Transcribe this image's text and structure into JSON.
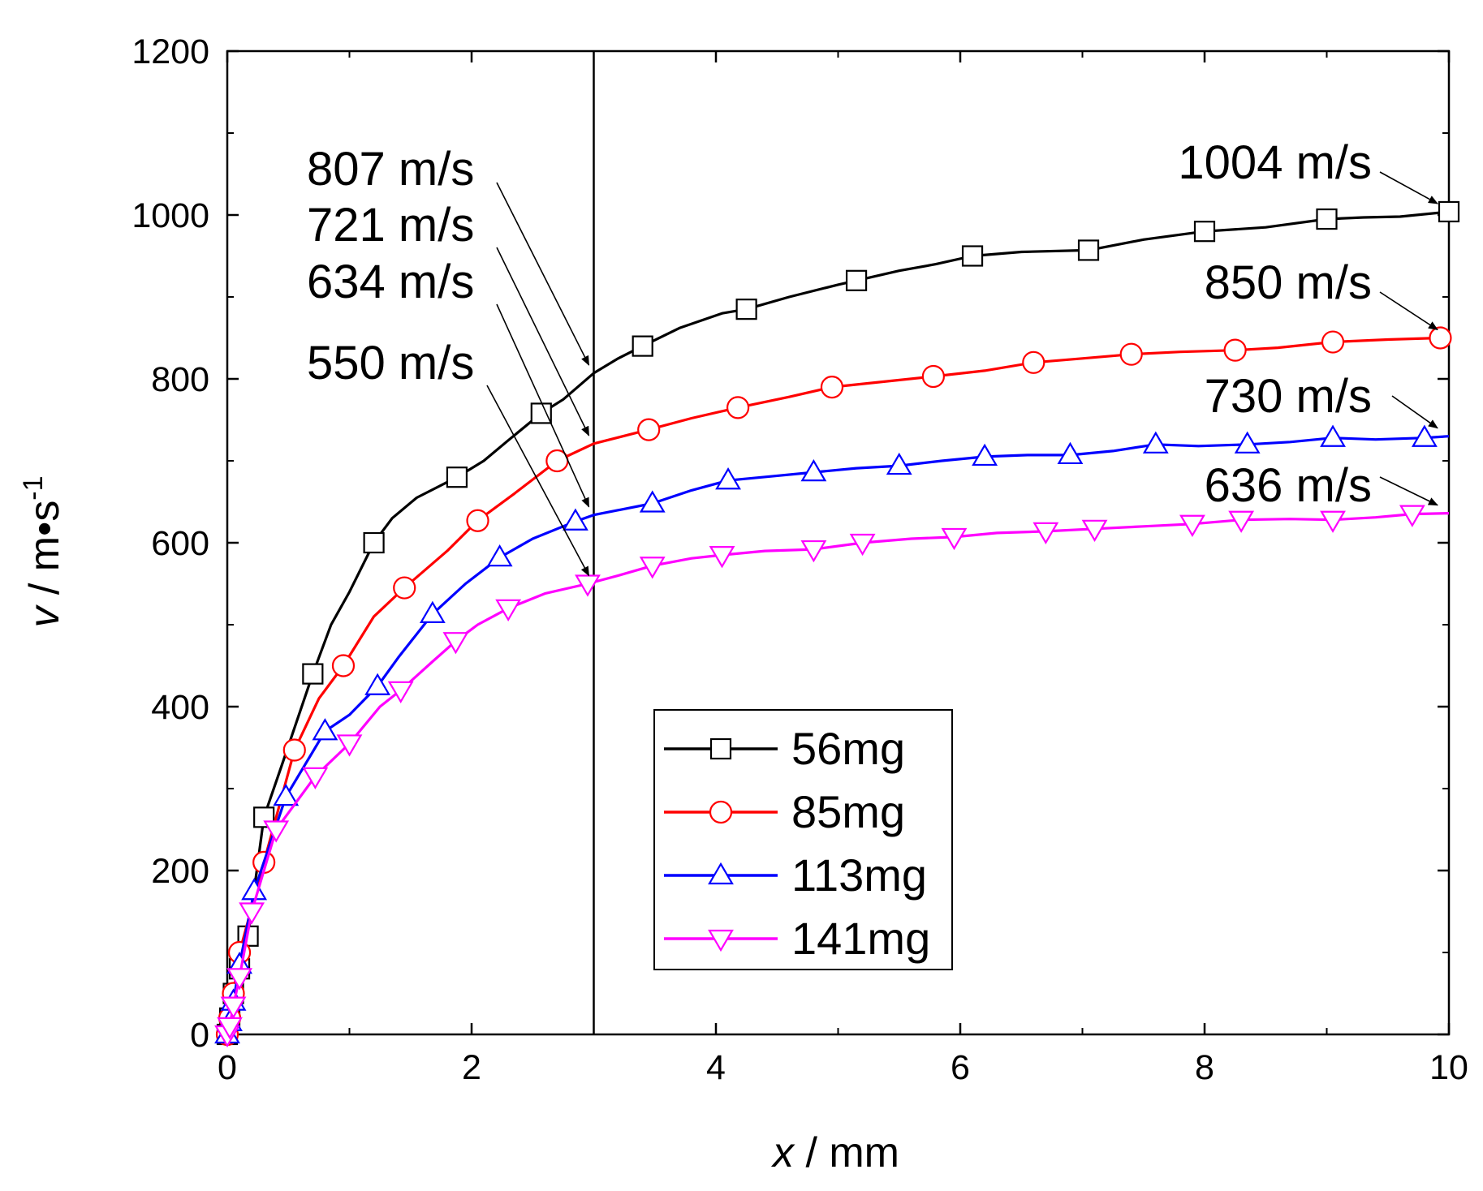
{
  "chart_data": {
    "type": "line",
    "xlabel_var": "x",
    "xlabel_unit": " / mm",
    "ylabel_var": "v",
    "ylabel_unit": " / m•s",
    "ylabel_sup": "-1",
    "xlim": [
      0,
      10
    ],
    "ylim": [
      0,
      1200
    ],
    "xticks": [
      0,
      2,
      4,
      6,
      8,
      10
    ],
    "yticks": [
      0,
      200,
      400,
      600,
      800,
      1000,
      1200
    ],
    "vline_x": 3,
    "legend_position": "center-bottom",
    "series": [
      {
        "name": "56mg",
        "color": "#000000",
        "marker": "square",
        "x": [
          0,
          0.02,
          0.05,
          0.1,
          0.17,
          0.3,
          0.45,
          0.7,
          0.85,
          1.0,
          1.2,
          1.35,
          1.55,
          1.88,
          2.1,
          2.3,
          2.57,
          2.75,
          3.0,
          3.2,
          3.4,
          3.7,
          4.05,
          4.25,
          4.6,
          5.0,
          5.15,
          5.5,
          5.8,
          6.1,
          6.5,
          7.05,
          7.5,
          8.0,
          8.5,
          9.0,
          9.3,
          9.6,
          10.0
        ],
        "y": [
          0,
          20,
          50,
          80,
          120,
          265,
          330,
          440,
          500,
          540,
          600,
          630,
          655,
          680,
          700,
          725,
          758,
          775,
          807,
          825,
          840,
          862,
          880,
          885,
          900,
          915,
          920,
          932,
          940,
          950,
          955,
          957,
          970,
          980,
          985,
          995,
          997,
          998,
          1004
        ],
        "marker_x": [
          0,
          0.02,
          0.05,
          0.1,
          0.17,
          0.3,
          0.7,
          1.2,
          1.88,
          2.57,
          3.4,
          4.25,
          5.15,
          6.1,
          7.05,
          8.0,
          9.0,
          10.0
        ],
        "marker_y": [
          0,
          20,
          50,
          80,
          120,
          265,
          440,
          600,
          680,
          758,
          840,
          885,
          920,
          950,
          957,
          980,
          995,
          1004
        ]
      },
      {
        "name": "85mg",
        "color": "#ff0000",
        "marker": "circle",
        "x": [
          0,
          0.02,
          0.05,
          0.1,
          0.3,
          0.55,
          0.75,
          0.95,
          1.2,
          1.45,
          1.8,
          2.05,
          2.35,
          2.7,
          3.0,
          3.45,
          3.8,
          4.18,
          4.6,
          4.95,
          5.4,
          5.78,
          6.2,
          6.6,
          7.0,
          7.4,
          7.8,
          8.25,
          8.6,
          9.05,
          9.5,
          9.93
        ],
        "y": [
          0,
          20,
          50,
          100,
          210,
          347,
          410,
          450,
          510,
          545,
          590,
          627,
          660,
          700,
          721,
          738,
          752,
          765,
          778,
          790,
          797,
          803,
          810,
          820,
          825,
          830,
          833,
          835,
          838,
          845,
          848,
          850
        ],
        "marker_x": [
          0,
          0.02,
          0.05,
          0.1,
          0.3,
          0.55,
          0.95,
          1.45,
          2.05,
          2.7,
          3.45,
          4.18,
          4.95,
          5.78,
          6.6,
          7.4,
          8.25,
          9.05,
          9.93
        ],
        "marker_y": [
          0,
          20,
          50,
          100,
          210,
          347,
          450,
          545,
          627,
          700,
          738,
          765,
          790,
          803,
          820,
          830,
          835,
          845,
          850
        ]
      },
      {
        "name": "113mg",
        "color": "#0000ff",
        "marker": "triangle-up",
        "x": [
          0,
          0.02,
          0.05,
          0.1,
          0.22,
          0.48,
          0.8,
          1.0,
          1.23,
          1.4,
          1.68,
          1.95,
          2.23,
          2.5,
          2.85,
          3.0,
          3.48,
          3.8,
          4.1,
          4.45,
          4.8,
          5.15,
          5.5,
          5.85,
          6.2,
          6.55,
          6.9,
          7.25,
          7.6,
          7.95,
          8.35,
          8.7,
          9.05,
          9.4,
          9.8,
          10.0
        ],
        "y": [
          0,
          15,
          40,
          85,
          175,
          290,
          370,
          390,
          425,
          460,
          513,
          550,
          582,
          605,
          626,
          634,
          648,
          664,
          676,
          681,
          686,
          691,
          694,
          700,
          705,
          707,
          707,
          712,
          720,
          718,
          720,
          723,
          728,
          726,
          728,
          730
        ],
        "marker_x": [
          0,
          0.02,
          0.05,
          0.1,
          0.22,
          0.48,
          0.8,
          1.23,
          1.68,
          2.23,
          2.85,
          3.48,
          4.1,
          4.8,
          5.5,
          6.2,
          6.9,
          7.6,
          8.35,
          9.05,
          9.8
        ],
        "marker_y": [
          0,
          15,
          40,
          85,
          175,
          290,
          370,
          425,
          513,
          582,
          626,
          648,
          676,
          686,
          694,
          705,
          707,
          720,
          720,
          728,
          728
        ]
      },
      {
        "name": "141mg",
        "color": "#ff00ff",
        "marker": "triangle-down",
        "x": [
          0,
          0.02,
          0.05,
          0.1,
          0.2,
          0.4,
          0.72,
          1.0,
          1.25,
          1.42,
          1.68,
          1.87,
          2.05,
          2.3,
          2.6,
          2.95,
          3.2,
          3.48,
          3.8,
          4.05,
          4.4,
          4.8,
          5.2,
          5.6,
          5.95,
          6.3,
          6.7,
          7.1,
          7.5,
          7.9,
          8.3,
          8.7,
          9.05,
          9.4,
          9.7,
          10.0
        ],
        "y": [
          0,
          10,
          35,
          70,
          150,
          250,
          315,
          355,
          400,
          420,
          455,
          480,
          500,
          520,
          538,
          550,
          560,
          572,
          581,
          585,
          590,
          592,
          600,
          605,
          607,
          612,
          614,
          617,
          620,
          623,
          628,
          629,
          628,
          631,
          635,
          636
        ],
        "marker_x": [
          0,
          0.02,
          0.05,
          0.1,
          0.2,
          0.4,
          0.72,
          1.0,
          1.42,
          1.87,
          2.3,
          2.95,
          3.48,
          4.05,
          4.8,
          5.2,
          5.95,
          6.7,
          7.1,
          7.9,
          8.3,
          9.05,
          9.7
        ],
        "marker_y": [
          0,
          10,
          35,
          70,
          150,
          250,
          315,
          355,
          420,
          480,
          520,
          550,
          572,
          585,
          592,
          600,
          607,
          614,
          617,
          623,
          628,
          628,
          635
        ]
      }
    ],
    "annotations": [
      {
        "text": "807 m/s",
        "target_x": 3,
        "target_y": 807
      },
      {
        "text": "721 m/s",
        "target_x": 3,
        "target_y": 721
      },
      {
        "text": "634 m/s",
        "target_x": 3,
        "target_y": 634
      },
      {
        "text": "550 m/s",
        "target_x": 3,
        "target_y": 550
      },
      {
        "text": "1004 m/s",
        "target_x": 10,
        "target_y": 1004
      },
      {
        "text": "850 m/s",
        "target_x": 10,
        "target_y": 850
      },
      {
        "text": "730 m/s",
        "target_x": 10,
        "target_y": 730
      },
      {
        "text": "636 m/s",
        "target_x": 10,
        "target_y": 636
      }
    ]
  }
}
